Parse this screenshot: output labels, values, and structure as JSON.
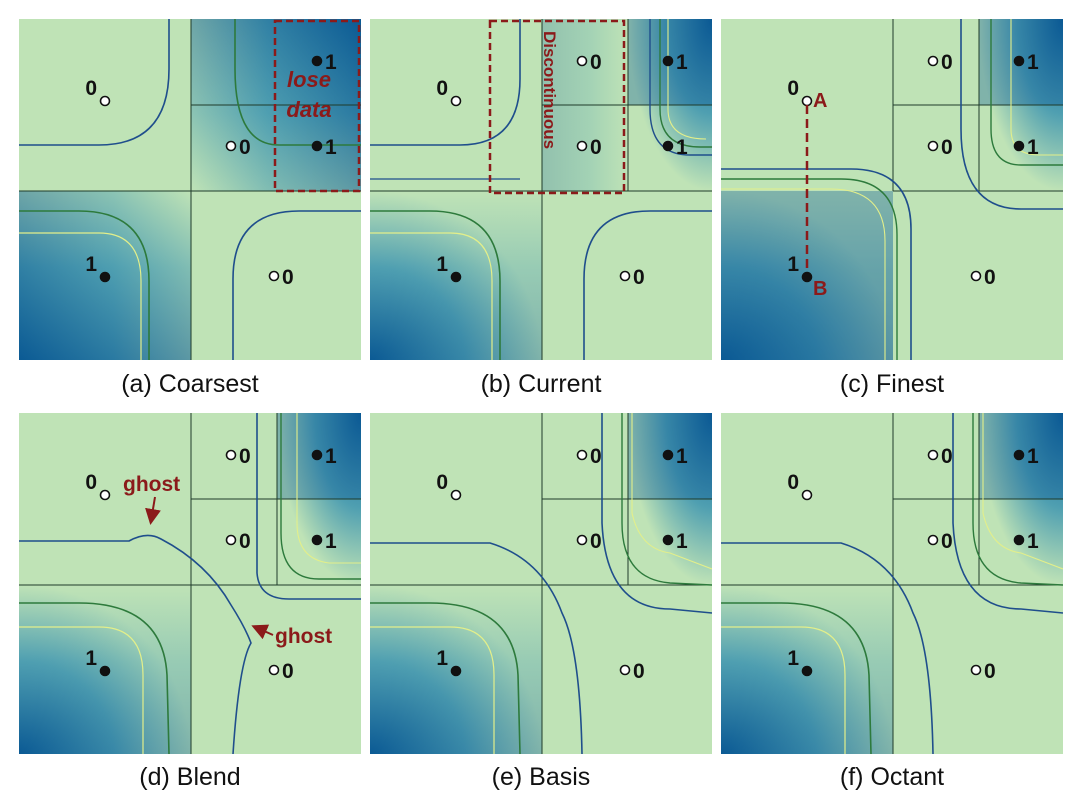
{
  "colors": {
    "light": "#bfe3b6",
    "mid": "#4f9fb1",
    "dark": "#0b5a94",
    "grid": "#1f3b2a",
    "iso_blue": "#1f4e8c",
    "iso_green": "#2d7a3c",
    "iso_yellow": "#e3ef8a",
    "annotation": "#8b1a1a"
  },
  "panels": [
    {
      "id": "a",
      "caption": "(a) Coarsest",
      "vertices": [
        {
          "label": "0",
          "filled": false
        },
        {
          "label": "0",
          "filled": false
        },
        {
          "label": "1",
          "filled": true
        },
        {
          "label": "1",
          "filled": true
        },
        {
          "label": "1",
          "filled": true
        },
        {
          "label": "0",
          "filled": false
        }
      ],
      "annotations": [
        {
          "text": "lose"
        },
        {
          "text": "data"
        }
      ]
    },
    {
      "id": "b",
      "caption": "(b) Current",
      "vertices": [
        {
          "label": "0",
          "filled": false
        },
        {
          "label": "0",
          "filled": false
        },
        {
          "label": "1",
          "filled": true
        },
        {
          "label": "0",
          "filled": false
        },
        {
          "label": "1",
          "filled": true
        },
        {
          "label": "1",
          "filled": true
        },
        {
          "label": "0",
          "filled": false
        }
      ],
      "annotations": [
        {
          "text": "Discontinuous"
        }
      ]
    },
    {
      "id": "c",
      "caption": "(c) Finest",
      "vertices": [
        {
          "label": "0",
          "filled": false
        },
        {
          "label": "0",
          "filled": false
        },
        {
          "label": "1",
          "filled": true
        },
        {
          "label": "0",
          "filled": false
        },
        {
          "label": "1",
          "filled": true
        },
        {
          "label": "1",
          "filled": true
        },
        {
          "label": "0",
          "filled": false
        }
      ],
      "annotations": [
        {
          "text": "A"
        },
        {
          "text": "B"
        }
      ]
    },
    {
      "id": "d",
      "caption": "(d) Blend",
      "vertices": [
        {
          "label": "0",
          "filled": false
        },
        {
          "label": "0",
          "filled": false
        },
        {
          "label": "1",
          "filled": true
        },
        {
          "label": "0",
          "filled": false
        },
        {
          "label": "1",
          "filled": true
        },
        {
          "label": "1",
          "filled": true
        },
        {
          "label": "0",
          "filled": false
        }
      ],
      "annotations": [
        {
          "text": "ghost"
        },
        {
          "text": "ghost"
        }
      ]
    },
    {
      "id": "e",
      "caption": "(e) Basis",
      "vertices": [
        {
          "label": "0",
          "filled": false
        },
        {
          "label": "0",
          "filled": false
        },
        {
          "label": "1",
          "filled": true
        },
        {
          "label": "0",
          "filled": false
        },
        {
          "label": "1",
          "filled": true
        },
        {
          "label": "1",
          "filled": true
        },
        {
          "label": "0",
          "filled": false
        }
      ],
      "annotations": []
    },
    {
      "id": "f",
      "caption": "(f) Octant",
      "vertices": [
        {
          "label": "0",
          "filled": false
        },
        {
          "label": "0",
          "filled": false
        },
        {
          "label": "1",
          "filled": true
        },
        {
          "label": "0",
          "filled": false
        },
        {
          "label": "1",
          "filled": true
        },
        {
          "label": "1",
          "filled": true
        },
        {
          "label": "0",
          "filled": false
        }
      ],
      "annotations": []
    }
  ]
}
